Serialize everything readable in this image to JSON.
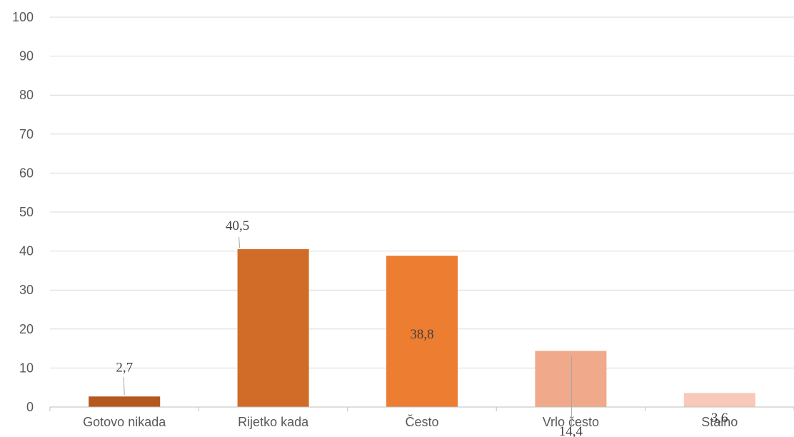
{
  "chart_data": {
    "type": "bar",
    "title": "",
    "xlabel": "",
    "ylabel": "",
    "ylim": [
      0,
      100
    ],
    "yticks": [
      0,
      10,
      20,
      30,
      40,
      50,
      60,
      70,
      80,
      90,
      100
    ],
    "grid": true,
    "categories": [
      "Gotovo nikada",
      "Rijetko kada",
      "Često",
      "Vrlo često",
      "Stalno"
    ],
    "values": [
      2.7,
      40.5,
      38.8,
      14.4,
      3.6
    ],
    "value_labels": [
      "2,7",
      "40,5",
      "38,8",
      "14,4",
      "3,6"
    ],
    "colors": [
      "#B5581F",
      "#D16B28",
      "#ED7D31",
      "#F0A98A",
      "#F8C9B8"
    ]
  }
}
